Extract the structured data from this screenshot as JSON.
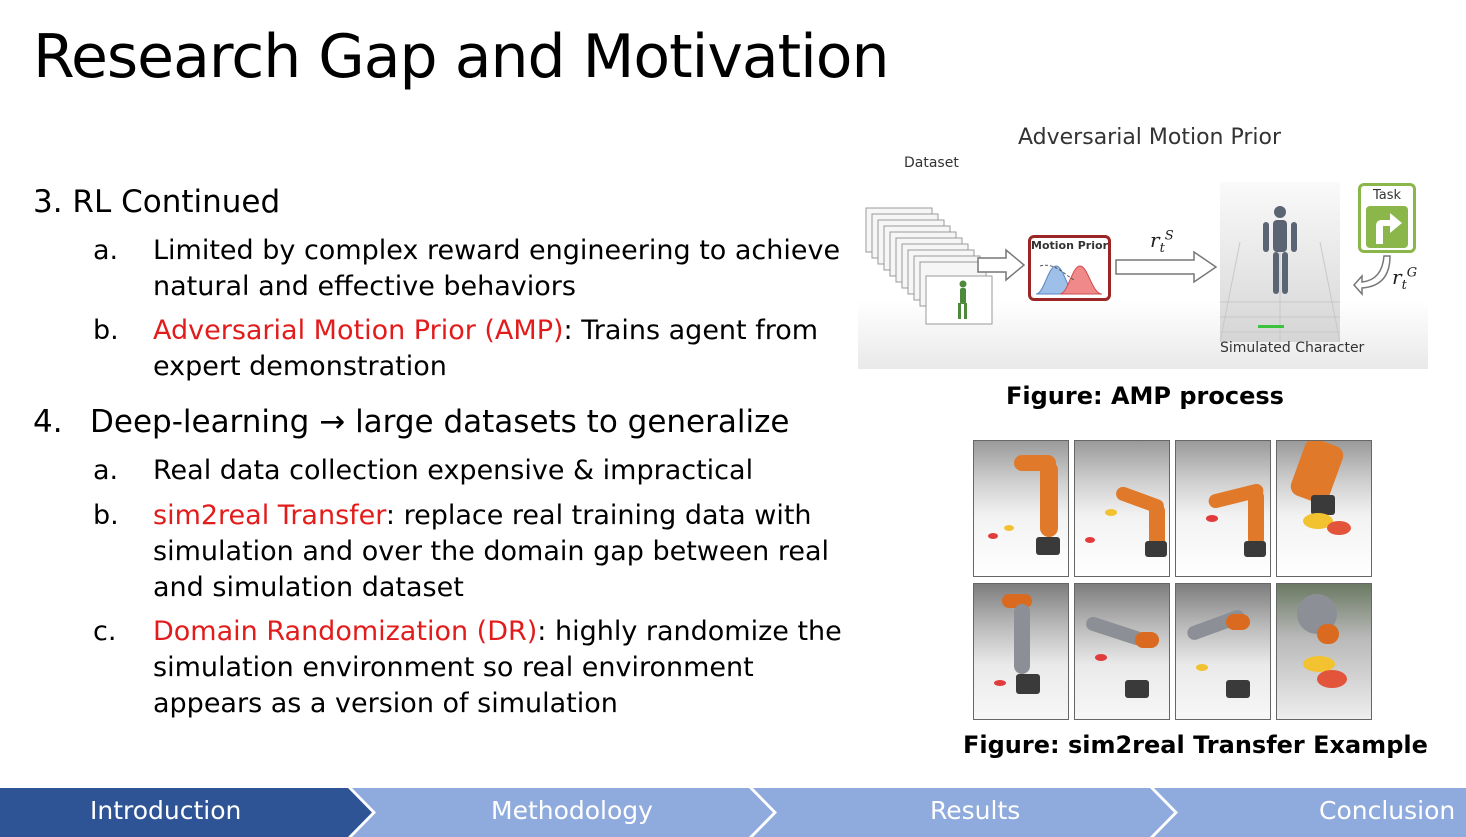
{
  "slide": {
    "title": "Research Gap and Motivation"
  },
  "content": {
    "item3": {
      "heading": "3. RL Continued",
      "a_marker": "a.",
      "a_line1": "Limited by complex reward engineering to achieve",
      "a_line2": "natural and effective behaviors",
      "b_marker": "b.",
      "b_highlight": "Adversarial Motion Prior (AMP)",
      "b_line1_rest": ": Trains agent from",
      "b_line2": "expert demonstration"
    },
    "item4": {
      "number": "4.",
      "heading_left": "Deep-learning",
      "arrow": "→",
      "heading_right": "large datasets to generalize",
      "a_marker": "a.",
      "a_line1": "Real data collection expensive & impractical",
      "b_marker": "b.",
      "b_highlight": "sim2real Transfer",
      "b_line1_rest": ": replace real training data with",
      "b_line2": "simulation and over the domain gap between real",
      "b_line3": "and simulation dataset",
      "c_marker": "c.",
      "c_highlight": "Domain Randomization (DR)",
      "c_line1_rest": ": highly randomize the",
      "c_line2": "simulation environment so real environment",
      "c_line3": "appears as a version of simulation"
    }
  },
  "amp_figure": {
    "title": "Adversarial Motion Prior",
    "dataset_label": "Dataset",
    "motion_prior_label": "Motion Prior",
    "task_label": "Task",
    "simulated_character_label": "Simulated Character",
    "caption": "Figure: AMP process"
  },
  "sim2real_figure": {
    "caption": "Figure: sim2real Transfer Example"
  },
  "nav": {
    "items": [
      "Introduction",
      "Methodology",
      "Results",
      "Conclusion"
    ],
    "active_color": "#2f5496",
    "inactive_color": "#8faadc"
  },
  "colors": {
    "highlight": "#e21b1b"
  }
}
